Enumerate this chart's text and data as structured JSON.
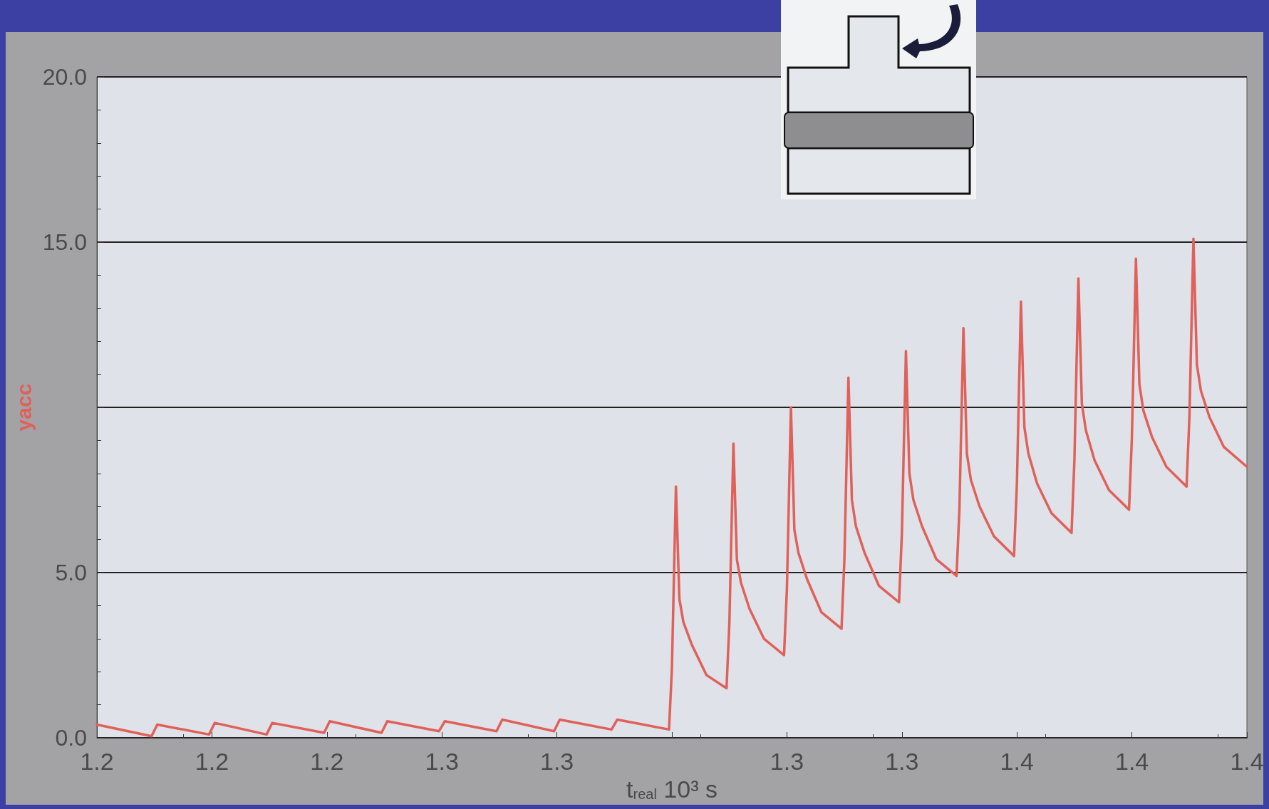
{
  "chart_data": {
    "type": "line",
    "xlabel": "t$_{real}$ 10³ s",
    "ylabel": "yacc",
    "x": [
      1.2,
      1.2095,
      1.2105,
      1.2195,
      1.2205,
      1.2295,
      1.2305,
      1.2395,
      1.2405,
      1.2495,
      1.2505,
      1.2595,
      1.2605,
      1.2695,
      1.2705,
      1.2795,
      1.2805,
      1.2895,
      1.2905,
      1.2995,
      1.3,
      1.3007,
      1.3013,
      1.302,
      1.3035,
      1.306,
      1.3095,
      1.31,
      1.3107,
      1.3113,
      1.312,
      1.3135,
      1.316,
      1.3195,
      1.32,
      1.3207,
      1.3213,
      1.322,
      1.3235,
      1.326,
      1.3295,
      1.33,
      1.3307,
      1.3313,
      1.332,
      1.3335,
      1.336,
      1.3395,
      1.34,
      1.3407,
      1.3413,
      1.342,
      1.3435,
      1.346,
      1.3495,
      1.35,
      1.3507,
      1.3513,
      1.352,
      1.3535,
      1.356,
      1.3595,
      1.36,
      1.3607,
      1.3613,
      1.362,
      1.3635,
      1.366,
      1.3695,
      1.37,
      1.3707,
      1.3713,
      1.372,
      1.3735,
      1.376,
      1.3795,
      1.38,
      1.3807,
      1.3813,
      1.382,
      1.3835,
      1.386,
      1.3895,
      1.39,
      1.3907,
      1.3913,
      1.392,
      1.3935,
      1.396,
      1.4
    ],
    "series": [
      {
        "color": "#e0605a",
        "values": [
          0.4,
          0.05,
          0.4,
          0.1,
          0.45,
          0.1,
          0.45,
          0.15,
          0.5,
          0.15,
          0.5,
          0.2,
          0.5,
          0.2,
          0.55,
          0.2,
          0.55,
          0.25,
          0.55,
          0.25,
          2.1,
          7.6,
          4.2,
          3.5,
          2.8,
          1.9,
          1.5,
          3.5,
          8.9,
          5.4,
          4.7,
          3.9,
          3.0,
          2.5,
          4.5,
          10.0,
          6.3,
          5.6,
          4.8,
          3.8,
          3.3,
          5.4,
          10.9,
          7.2,
          6.4,
          5.6,
          4.6,
          4.1,
          6.2,
          11.7,
          8.0,
          7.2,
          6.4,
          5.4,
          4.9,
          6.9,
          12.4,
          8.6,
          7.8,
          7.0,
          6.1,
          5.5,
          7.7,
          13.2,
          9.4,
          8.6,
          7.7,
          6.8,
          6.2,
          8.4,
          13.9,
          10.1,
          9.3,
          8.4,
          7.5,
          6.9,
          9.1,
          14.5,
          10.7,
          9.9,
          9.1,
          8.2,
          7.6,
          9.7,
          15.1,
          11.3,
          10.5,
          9.7,
          8.8,
          8.2
        ]
      }
    ],
    "xlim": [
      1.2,
      1.4
    ],
    "xticks": [
      {
        "value": 1.2,
        "label": "1.2"
      },
      {
        "value": 1.22,
        "label": "1.2"
      },
      {
        "value": 1.24,
        "label": "1.2"
      },
      {
        "value": 1.26,
        "label": "1.3"
      },
      {
        "value": 1.28,
        "label": "1.3"
      },
      {
        "value": 1.3,
        "label": null
      },
      {
        "value": 1.32,
        "label": "1.3"
      },
      {
        "value": 1.34,
        "label": "1.3"
      },
      {
        "value": 1.36,
        "label": "1.4"
      },
      {
        "value": 1.38,
        "label": "1.4"
      },
      {
        "value": 1.4,
        "label": "1.4"
      }
    ],
    "ylim": [
      0,
      20
    ],
    "yticks": [
      {
        "value": 0,
        "label": "0.0"
      },
      {
        "value": 5,
        "label": "5.0"
      },
      {
        "value": 10,
        "label": null
      },
      {
        "value": 15,
        "label": "15.0"
      },
      {
        "value": 20,
        "label": "20.0"
      }
    ],
    "grid": "y",
    "marker": "none",
    "line_style": "solid"
  }
}
